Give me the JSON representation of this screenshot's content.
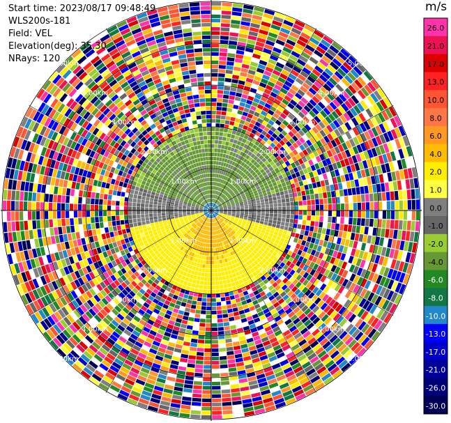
{
  "header": {
    "start_time": "Start time: 2023/08/17 09:48:49",
    "instrument": "WLS200s-181",
    "field": "Field: VEL",
    "elevation": "Elevation(deg): 35.30",
    "nrays": "NRays: 120"
  },
  "colorbar": {
    "unit": "m/s",
    "ticks": [
      "26.0",
      "21.0",
      "17.0",
      "13.0",
      "10.0",
      "8.0",
      "6.0",
      "4.0",
      "2.0",
      "1.0",
      "0.0",
      "-1.0",
      "-2.0",
      "-4.0",
      "-6.0",
      "-8.0",
      "-10.0",
      "-13.0",
      "-17.0",
      "-21.0",
      "-26.0",
      "-30.0"
    ],
    "colors": [
      "#ff33aa",
      "#ee1155",
      "#dd0000",
      "#ff2222",
      "#ff5533",
      "#ff7744",
      "#ff9922",
      "#ffbb00",
      "#ffee00",
      "#ffff44",
      "#7f7f7f",
      "#666666",
      "#99cc33",
      "#669933",
      "#228822",
      "#117744",
      "#2288cc",
      "#0000ff",
      "#0000cc",
      "#000099",
      "#000077",
      "#000055"
    ]
  },
  "chart_data": {
    "type": "heatmap",
    "projection": "polar PPI",
    "field": "VEL",
    "unit": "m/s",
    "nrays": 120,
    "elevation_deg": 35.3,
    "range_ring_labels": [
      "1.00km",
      "2.00km",
      "3.00km",
      "4.00km",
      "5.00km"
    ],
    "inner_pattern": {
      "north_half": "approx -1 to -4 m/s (green/gray)",
      "south_half": "approx 2 to 6 m/s (yellow/orange)",
      "noise_beyond_km": 2.0
    }
  }
}
